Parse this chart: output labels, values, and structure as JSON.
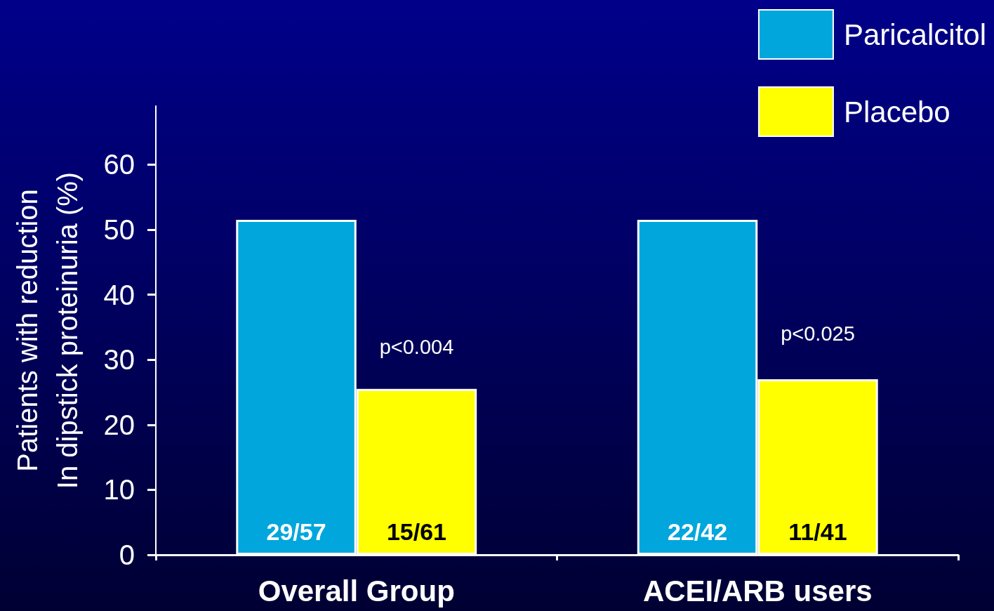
{
  "chart_data": {
    "type": "bar",
    "ylabel": "Patients with reduction\nIn dipstick proteinuria (%)",
    "categories": [
      "Overall Group",
      "ACEI/ARB users"
    ],
    "series": [
      {
        "name": "Paricalcitol",
        "color": "#00a6dc",
        "values": [
          51.5,
          51.5
        ],
        "value_labels": [
          "29/57",
          "22/42"
        ]
      },
      {
        "name": "Placebo",
        "color": "#ffff00",
        "values": [
          25.5,
          27
        ],
        "value_labels": [
          "15/61",
          "11/41"
        ]
      }
    ],
    "ylim": [
      0,
      69
    ],
    "yticks": [
      0,
      10,
      20,
      30,
      40,
      50,
      60
    ],
    "annotations": [
      {
        "text": "p<0.004",
        "x": "Overall Group",
        "y": 32
      },
      {
        "text": "p<0.025",
        "x": "ACEI/ARB users",
        "y": 34
      }
    ],
    "grid": false,
    "legend": "top right"
  }
}
